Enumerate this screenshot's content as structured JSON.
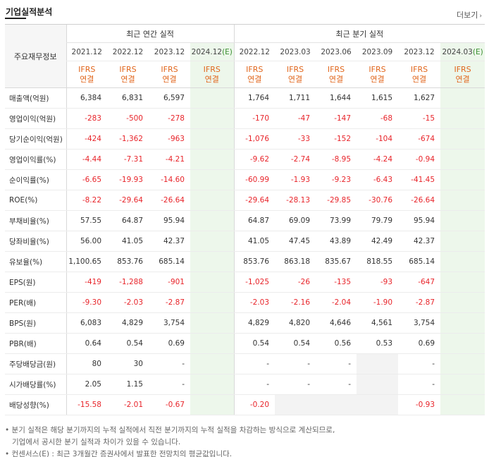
{
  "header": {
    "title": "기업실적분석",
    "more_label": "더보기"
  },
  "table": {
    "row_header_label": "주요재무정보",
    "annual_group_label": "최근 연간 실적",
    "quarter_group_label": "최근 분기 실적",
    "annual_periods": [
      "2021.12",
      "2022.12",
      "2023.12",
      "2024.12"
    ],
    "annual_estimate_suffix": "(E)",
    "quarter_periods": [
      "2022.12",
      "2023.03",
      "2023.06",
      "2023.09",
      "2023.12",
      "2024.03"
    ],
    "quarter_estimate_suffix": "(E)",
    "ifrs_top": "IFRS",
    "ifrs_bottom": "연결",
    "rows": [
      {
        "label": "매출액(억원)",
        "values": [
          "6,384",
          "6,831",
          "6,597",
          "",
          "1,764",
          "1,711",
          "1,644",
          "1,615",
          "1,627",
          ""
        ]
      },
      {
        "label": "영업이익(억원)",
        "values": [
          "-283",
          "-500",
          "-278",
          "",
          "-170",
          "-47",
          "-147",
          "-68",
          "-15",
          ""
        ]
      },
      {
        "label": "당기순이익(억원)",
        "values": [
          "-424",
          "-1,362",
          "-963",
          "",
          "-1,076",
          "-33",
          "-152",
          "-104",
          "-674",
          ""
        ]
      },
      {
        "label": "영업이익률(%)",
        "values": [
          "-4.44",
          "-7.31",
          "-4.21",
          "",
          "-9.62",
          "-2.74",
          "-8.95",
          "-4.24",
          "-0.94",
          ""
        ]
      },
      {
        "label": "순이익률(%)",
        "values": [
          "-6.65",
          "-19.93",
          "-14.60",
          "",
          "-60.99",
          "-1.93",
          "-9.23",
          "-6.43",
          "-41.45",
          ""
        ]
      },
      {
        "label": "ROE(%)",
        "values": [
          "-8.22",
          "-29.64",
          "-26.64",
          "",
          "-29.64",
          "-28.13",
          "-29.85",
          "-30.76",
          "-26.64",
          ""
        ]
      },
      {
        "label": "부채비율(%)",
        "values": [
          "57.55",
          "64.87",
          "95.94",
          "",
          "64.87",
          "69.09",
          "73.99",
          "79.79",
          "95.94",
          ""
        ]
      },
      {
        "label": "당좌비율(%)",
        "values": [
          "56.00",
          "41.05",
          "42.37",
          "",
          "41.05",
          "47.45",
          "43.89",
          "42.49",
          "42.37",
          ""
        ]
      },
      {
        "label": "유보율(%)",
        "values": [
          "1,100.65",
          "853.76",
          "685.14",
          "",
          "853.76",
          "863.18",
          "835.67",
          "818.55",
          "685.14",
          ""
        ]
      },
      {
        "label": "EPS(원)",
        "values": [
          "-419",
          "-1,288",
          "-901",
          "",
          "-1,025",
          "-26",
          "-135",
          "-93",
          "-647",
          ""
        ]
      },
      {
        "label": "PER(배)",
        "values": [
          "-9.30",
          "-2.03",
          "-2.87",
          "",
          "-2.03",
          "-2.16",
          "-2.04",
          "-1.90",
          "-2.87",
          ""
        ]
      },
      {
        "label": "BPS(원)",
        "values": [
          "6,083",
          "4,829",
          "3,754",
          "",
          "4,829",
          "4,820",
          "4,646",
          "4,561",
          "3,754",
          ""
        ]
      },
      {
        "label": "PBR(배)",
        "values": [
          "0.64",
          "0.54",
          "0.69",
          "",
          "0.54",
          "0.54",
          "0.56",
          "0.53",
          "0.69",
          ""
        ]
      },
      {
        "label": "주당배당금(원)",
        "values": [
          "80",
          "30",
          "-",
          "",
          "-",
          "-",
          "-",
          "",
          "-",
          ""
        ]
      },
      {
        "label": "시가배당률(%)",
        "values": [
          "2.05",
          "1.15",
          "-",
          "",
          "-",
          "-",
          "-",
          "",
          "-",
          ""
        ]
      },
      {
        "label": "배당성향(%)",
        "values": [
          "-15.58",
          "-2.01",
          "-0.67",
          "",
          "-0.20",
          "",
          "",
          "",
          "-0.93",
          ""
        ]
      }
    ]
  },
  "notes": [
    "• 분기 실적은 해당 분기까지의 누적 실적에서 직전 분기까지의 누적 실적을 차감하는 방식으로 계산되므로,",
    "기업에서 공시한 분기 실적과 차이가 있을 수 있습니다.",
    "• 컨센서스(E) : 최근 3개월간 증권사에서 발표한 전망치의 평균값입니다."
  ],
  "colors": {
    "negative": "#e8242a",
    "ifrs": "#e1661c",
    "estimate_bg": "#edf7eb"
  }
}
